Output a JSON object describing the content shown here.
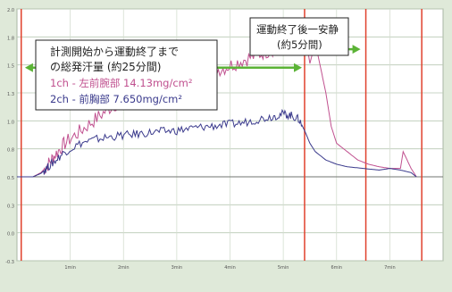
{
  "chart_data": {
    "type": "line",
    "title": "",
    "xlabel": "",
    "ylabel": "",
    "ylim": [
      -1.0,
      2.0
    ],
    "xlim": [
      0,
      8
    ],
    "grid": true,
    "y_ticks": [
      "2.0",
      "1.8",
      "1.5",
      "1.3",
      "1.0",
      "0.8",
      "0.5",
      "0.3",
      "0.0",
      "-0.3"
    ],
    "x_ticks": [
      "1min",
      "2min",
      "3min",
      "4min",
      "5min",
      "6min",
      "7min"
    ],
    "series": [
      {
        "name": "1ch - 左前腕部",
        "color": "#c0508f",
        "x": [
          0.0,
          0.3,
          0.45,
          0.55,
          0.7,
          0.9,
          1.2,
          1.5,
          1.8,
          2.1,
          2.4,
          2.7,
          3.0,
          3.3,
          3.6,
          3.9,
          4.2,
          4.5,
          4.8,
          5.0,
          5.15,
          5.3,
          5.45,
          5.5,
          5.6,
          5.7,
          5.8,
          5.9,
          6.0,
          6.2,
          6.4,
          6.6,
          6.8,
          7.0,
          7.2,
          7.25,
          7.4,
          7.5
        ],
        "values": [
          0.0,
          0.0,
          0.05,
          0.12,
          0.25,
          0.4,
          0.55,
          0.7,
          0.85,
          0.95,
          1.0,
          1.05,
          1.1,
          1.2,
          1.25,
          1.3,
          1.38,
          1.45,
          1.52,
          1.6,
          1.62,
          1.6,
          1.55,
          1.35,
          1.6,
          1.3,
          1.0,
          0.6,
          0.4,
          0.3,
          0.2,
          0.15,
          0.12,
          0.1,
          0.1,
          0.3,
          0.1,
          0.0
        ]
      },
      {
        "name": "2ch - 前胸部",
        "color": "#3a3a8c",
        "x": [
          0.0,
          0.3,
          0.45,
          0.55,
          0.7,
          0.9,
          1.2,
          1.5,
          1.8,
          2.1,
          2.4,
          2.7,
          3.0,
          3.3,
          3.6,
          3.9,
          4.2,
          4.5,
          4.8,
          5.0,
          5.15,
          5.3,
          5.4,
          5.5,
          5.6,
          5.8,
          6.0,
          6.2,
          6.5,
          6.8,
          7.0,
          7.2,
          7.4,
          7.5
        ],
        "values": [
          0.0,
          0.0,
          0.04,
          0.1,
          0.18,
          0.3,
          0.4,
          0.45,
          0.48,
          0.5,
          0.52,
          0.54,
          0.55,
          0.58,
          0.6,
          0.62,
          0.64,
          0.68,
          0.72,
          0.75,
          0.73,
          0.68,
          0.55,
          0.4,
          0.3,
          0.2,
          0.15,
          0.12,
          0.1,
          0.08,
          0.1,
          0.08,
          0.05,
          0.0
        ]
      }
    ],
    "markers": [
      {
        "name": "start",
        "x": 0.08,
        "color": "#e0402c"
      },
      {
        "name": "exercise-end",
        "x": 5.4,
        "color": "#e0402c"
      },
      {
        "name": "end-plus-5min",
        "x": 6.55,
        "color": "#e0402c"
      },
      {
        "name": "right-edge",
        "x": 7.6,
        "color": "#e0402c"
      }
    ],
    "annotations": {
      "box1_line1": "計測開始から運動終了まで",
      "box1_line2": "の総発汗量 (約25分間)",
      "legend1": "1ch - 左前腕部   14.13mg/cm²",
      "legend2": "2ch - 前胸部      7.650mg/cm²",
      "box2_line1": "運動終了後一安静",
      "box2_line2": "(約5分間)"
    },
    "arrows": [
      {
        "from": 0.15,
        "to": 5.35,
        "y": 1.3,
        "color": "#5bb336"
      },
      {
        "from": 5.5,
        "to": 6.45,
        "y": 1.52,
        "color": "#5bb336"
      }
    ]
  }
}
